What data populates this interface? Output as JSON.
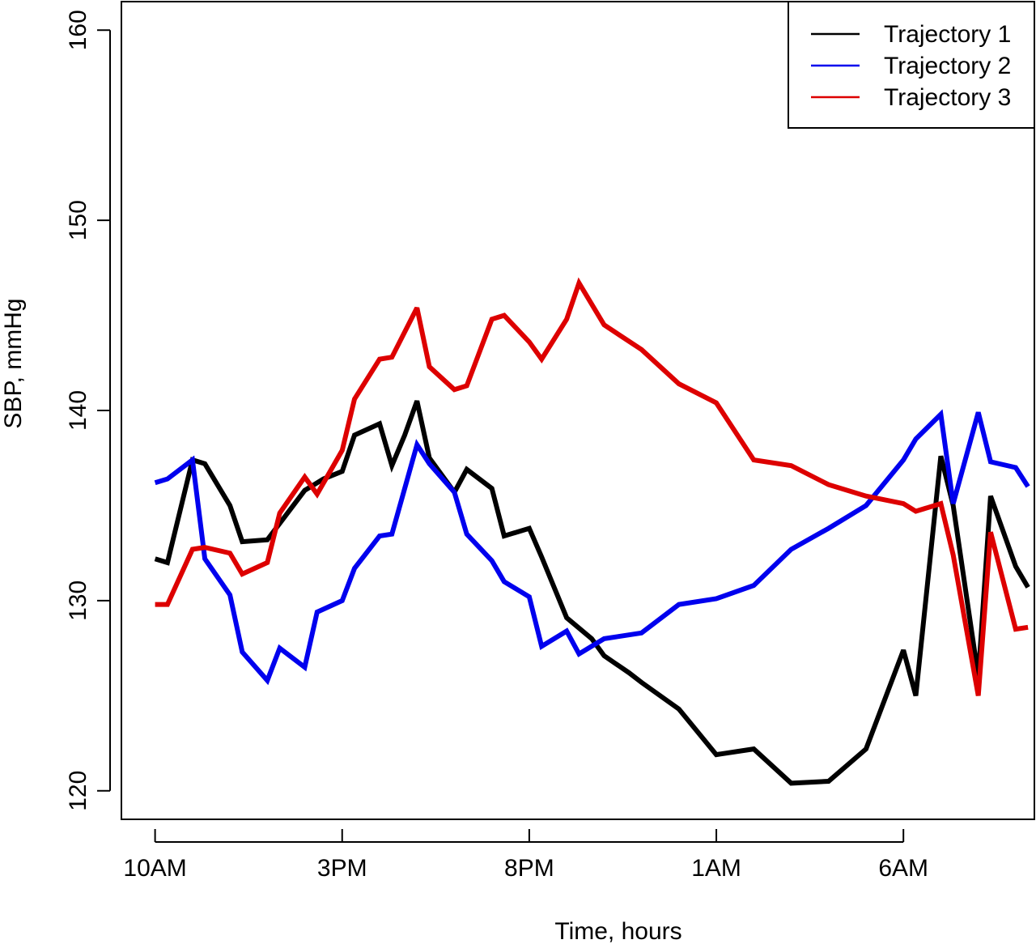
{
  "chart_data": {
    "type": "line",
    "title": "",
    "xlabel": "Time, hours",
    "ylabel": "SBP, mmHg",
    "xlim": [
      -0.9,
      23.5
    ],
    "ylim": [
      118.5,
      161.5
    ],
    "xticks": [
      0,
      5,
      10,
      15,
      20
    ],
    "xtick_labels": [
      "10AM",
      "3PM",
      "8PM",
      "1AM",
      "6AM"
    ],
    "yticks": [
      120,
      130,
      140,
      150,
      160
    ],
    "ytick_labels": [
      "120",
      "130",
      "140",
      "150",
      "160"
    ],
    "grid": false,
    "legend_position": "top-right",
    "series": [
      {
        "name": "Trajectory 1",
        "color": "#000000",
        "x": [
          0,
          0.33,
          1.0,
          1.33,
          2.0,
          2.33,
          3.0,
          3.5,
          4.0,
          4.5,
          5.0,
          5.33,
          6.0,
          6.33,
          6.67,
          7.0,
          7.33,
          8.0,
          8.33,
          9.0,
          9.33,
          10.0,
          10.33,
          11.0,
          11.67,
          12.0,
          12.67,
          13.0,
          14.0,
          15.0,
          16.0,
          17.0,
          18.0,
          19.0,
          20.0,
          20.33,
          21.0,
          21.33,
          22.0,
          22.33,
          23.0,
          23.33
        ],
        "y": [
          132.2,
          132.0,
          137.4,
          137.2,
          135.0,
          133.1,
          133.2,
          134.5,
          135.8,
          136.4,
          136.8,
          138.7,
          139.3,
          137.1,
          138.7,
          140.5,
          137.5,
          135.7,
          136.9,
          135.9,
          133.4,
          133.8,
          132.3,
          129.1,
          128.0,
          127.1,
          126.2,
          125.7,
          124.3,
          121.9,
          122.2,
          120.4,
          120.5,
          122.2,
          127.4,
          125.0,
          137.6,
          135.0,
          126.0,
          135.5,
          131.8,
          130.7
        ]
      },
      {
        "name": "Trajectory 2",
        "color": "#0000ee",
        "x": [
          0,
          0.33,
          1.0,
          1.33,
          2.0,
          2.33,
          3.0,
          3.33,
          4.0,
          4.33,
          5.0,
          5.33,
          6.0,
          6.33,
          7.0,
          7.33,
          8.0,
          8.33,
          9.0,
          9.33,
          10.0,
          10.33,
          11.0,
          11.33,
          12.0,
          13.0,
          14.0,
          15.0,
          16.0,
          17.0,
          18.0,
          19.0,
          20.0,
          20.33,
          21.0,
          21.33,
          22.0,
          22.33,
          23.0,
          23.33
        ],
        "y": [
          136.2,
          136.4,
          137.4,
          132.2,
          130.3,
          127.3,
          125.8,
          127.5,
          126.5,
          129.4,
          130.0,
          131.7,
          133.4,
          133.5,
          138.2,
          137.2,
          135.7,
          133.5,
          132.1,
          131.0,
          130.2,
          127.6,
          128.4,
          127.2,
          128.0,
          128.3,
          129.8,
          130.1,
          130.8,
          132.7,
          133.8,
          135.0,
          137.4,
          138.5,
          139.8,
          135.1,
          139.9,
          137.3,
          137.0,
          136.0
        ]
      },
      {
        "name": "Trajectory 3",
        "color": "#dd0000",
        "x": [
          0,
          0.33,
          1.0,
          1.33,
          2.0,
          2.33,
          3.0,
          3.33,
          4.0,
          4.33,
          5.0,
          5.33,
          6.0,
          6.33,
          7.0,
          7.33,
          8.0,
          8.33,
          9.0,
          9.33,
          10.0,
          10.33,
          11.0,
          11.33,
          12.0,
          13.0,
          14.0,
          15.0,
          16.0,
          17.0,
          18.0,
          19.0,
          20.0,
          20.33,
          21.0,
          21.33,
          22.0,
          22.33,
          23.0,
          23.33
        ],
        "y": [
          129.8,
          129.8,
          132.7,
          132.8,
          132.5,
          131.4,
          132.0,
          134.6,
          136.5,
          135.6,
          137.9,
          140.6,
          142.7,
          142.8,
          145.4,
          142.3,
          141.1,
          141.3,
          144.8,
          145.0,
          143.6,
          142.7,
          144.8,
          146.7,
          144.5,
          143.2,
          141.4,
          140.4,
          137.4,
          137.1,
          136.1,
          135.5,
          135.1,
          134.7,
          135.1,
          132.4,
          125.0,
          133.6,
          128.5,
          128.6
        ]
      }
    ]
  }
}
